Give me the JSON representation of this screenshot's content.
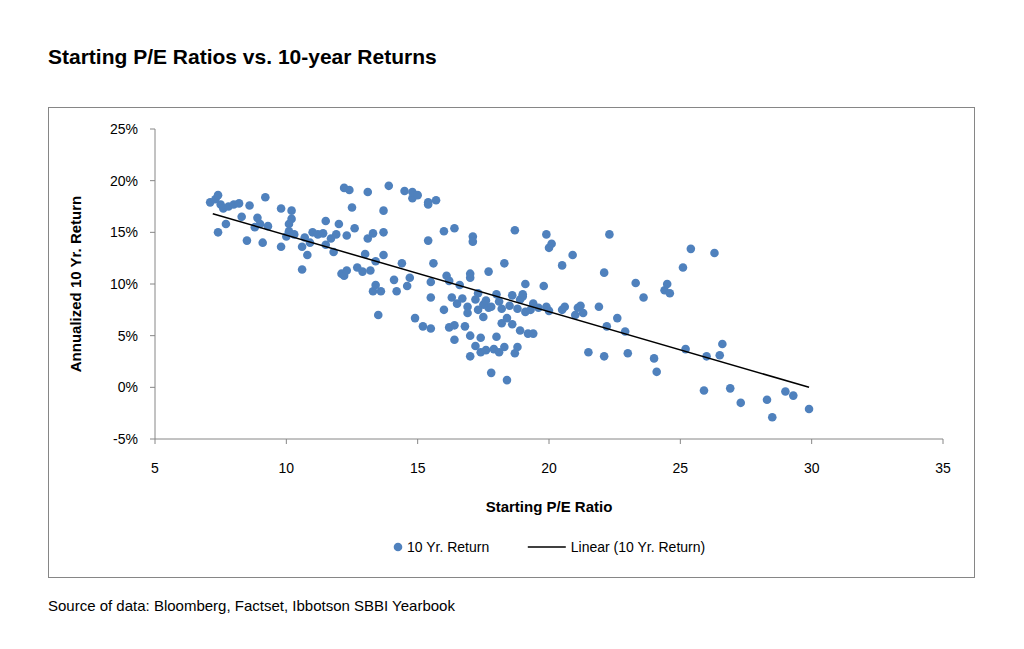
{
  "chart_data": {
    "type": "scatter",
    "title": "Starting P/E Ratios vs. 10-year Returns",
    "x_label": "Starting P/E Ratio",
    "y_label": "Annualized 10 Yr. Return",
    "source": "Source of data: Bloomberg, Factset, Ibbotson SBBI Yearbook",
    "xlim": [
      5,
      35
    ],
    "xticks": [
      5,
      10,
      15,
      20,
      25,
      30,
      35
    ],
    "ylim": [
      -5,
      25
    ],
    "yticks": [
      {
        "value": -5,
        "label": "-5%"
      },
      {
        "value": 0,
        "label": "0%"
      },
      {
        "value": 5,
        "label": "5%"
      },
      {
        "value": 10,
        "label": "10%"
      },
      {
        "value": 15,
        "label": "15%"
      },
      {
        "value": 20,
        "label": "20%"
      },
      {
        "value": 25,
        "label": "25%"
      }
    ],
    "grid": false,
    "legend": "bottom",
    "series": [
      {
        "name": "10 Yr. Return",
        "type": "scatter",
        "marker": "circle",
        "color": "#4f81bd",
        "x": [
          7.1,
          7.3,
          7.4,
          7.5,
          7.4,
          7.6,
          7.8,
          7.7,
          8.0,
          8.2,
          8.3,
          8.5,
          8.6,
          8.8,
          8.9,
          9.0,
          9.1,
          9.2,
          9.3,
          9.8,
          9.8,
          10.0,
          10.1,
          10.2,
          10.2,
          10.3,
          10.1,
          10.6,
          10.6,
          10.7,
          10.8,
          10.9,
          11.0,
          11.2,
          11.4,
          11.5,
          11.5,
          11.7,
          11.8,
          11.9,
          12.0,
          12.1,
          12.2,
          12.2,
          12.3,
          12.4,
          12.5,
          12.3,
          12.6,
          12.7,
          12.9,
          13.0,
          13.1,
          13.1,
          13.2,
          13.3,
          13.3,
          13.4,
          13.4,
          13.5,
          13.6,
          13.7,
          13.7,
          13.7,
          13.9,
          14.1,
          14.2,
          14.4,
          14.5,
          14.6,
          14.7,
          14.8,
          14.8,
          14.9,
          15.0,
          15.2,
          15.4,
          15.4,
          15.4,
          15.5,
          15.5,
          15.5,
          15.7,
          15.6,
          16.0,
          16.0,
          16.1,
          16.2,
          16.2,
          16.3,
          16.4,
          16.4,
          16.4,
          16.5,
          16.6,
          16.7,
          16.8,
          16.9,
          16.9,
          17.0,
          17.0,
          17.0,
          17.0,
          17.1,
          17.1,
          17.2,
          17.2,
          17.3,
          17.3,
          17.4,
          17.4,
          17.5,
          17.5,
          17.6,
          17.6,
          17.7,
          17.7,
          17.8,
          17.8,
          17.9,
          18.0,
          18.0,
          18.1,
          18.1,
          18.2,
          18.2,
          18.3,
          18.3,
          18.4,
          18.4,
          18.5,
          18.6,
          18.6,
          18.7,
          18.7,
          18.8,
          18.8,
          18.9,
          18.9,
          19.0,
          19.0,
          19.1,
          19.1,
          19.2,
          19.3,
          19.4,
          19.4,
          19.6,
          19.8,
          19.9,
          19.9,
          20.0,
          20.0,
          20.1,
          20.5,
          20.5,
          20.6,
          20.9,
          21.0,
          21.1,
          21.2,
          21.3,
          21.5,
          21.9,
          22.1,
          22.1,
          22.2,
          22.3,
          22.6,
          22.9,
          23.0,
          23.3,
          23.6,
          24.0,
          24.1,
          24.4,
          24.5,
          24.6,
          25.1,
          25.2,
          25.4,
          25.9,
          26.0,
          26.3,
          26.5,
          26.6,
          26.9,
          27.3,
          28.3,
          28.5,
          29.0,
          29.3,
          29.9
        ],
        "values": [
          17.9,
          18.2,
          18.6,
          17.7,
          15.0,
          17.3,
          17.5,
          15.8,
          17.7,
          17.8,
          16.5,
          14.2,
          17.6,
          15.5,
          16.4,
          15.8,
          14.0,
          18.4,
          15.6,
          13.6,
          17.3,
          14.6,
          15.1,
          16.3,
          17.1,
          14.8,
          15.8,
          11.4,
          13.6,
          14.5,
          12.8,
          14.0,
          15.0,
          14.8,
          14.9,
          16.1,
          13.8,
          14.4,
          13.1,
          14.8,
          15.8,
          11.0,
          10.8,
          19.3,
          11.3,
          19.1,
          17.4,
          14.7,
          15.4,
          11.6,
          11.2,
          12.9,
          18.9,
          14.4,
          11.3,
          9.3,
          14.9,
          9.9,
          12.2,
          7.0,
          9.3,
          12.8,
          15.0,
          17.1,
          19.5,
          10.4,
          9.3,
          12.0,
          19.0,
          9.8,
          10.6,
          18.3,
          18.9,
          6.7,
          18.6,
          5.9,
          14.2,
          17.7,
          17.9,
          10.2,
          8.7,
          5.7,
          18.1,
          12.0,
          7.5,
          15.1,
          10.8,
          10.3,
          5.8,
          8.7,
          4.6,
          6.0,
          15.4,
          8.1,
          9.9,
          8.6,
          5.9,
          7.8,
          7.2,
          5.0,
          10.6,
          11.0,
          3.0,
          14.6,
          14.1,
          4.0,
          8.5,
          9.1,
          7.5,
          4.8,
          3.4,
          8.0,
          6.8,
          3.6,
          8.4,
          7.7,
          11.2,
          1.4,
          7.8,
          3.7,
          4.9,
          9.0,
          8.3,
          3.4,
          6.2,
          7.6,
          12.0,
          3.9,
          6.7,
          0.7,
          7.9,
          6.1,
          8.9,
          15.2,
          3.3,
          7.6,
          3.9,
          8.5,
          5.5,
          8.8,
          9.0,
          7.3,
          10.0,
          5.2,
          7.5,
          8.1,
          5.2,
          7.7,
          9.8,
          14.8,
          7.8,
          13.5,
          7.4,
          13.9,
          7.5,
          11.8,
          7.8,
          12.8,
          7.0,
          7.7,
          7.9,
          7.2,
          3.4,
          7.8,
          3.0,
          11.1,
          5.9,
          14.8,
          6.7,
          5.4,
          3.3,
          10.1,
          8.7,
          2.8,
          1.5,
          9.4,
          10.0,
          9.1,
          11.6,
          3.7,
          13.4,
          -0.3,
          3.0,
          13.0,
          3.1,
          4.2,
          -0.1,
          -1.5,
          -1.2,
          -2.9,
          -0.4,
          -0.8,
          -2.1
        ]
      },
      {
        "name": "Linear (10 Yr. Return)",
        "type": "line",
        "line_style": "solid",
        "color": "#000000",
        "x": [
          7.2,
          29.9
        ],
        "values": [
          16.8,
          0.0
        ]
      }
    ]
  }
}
